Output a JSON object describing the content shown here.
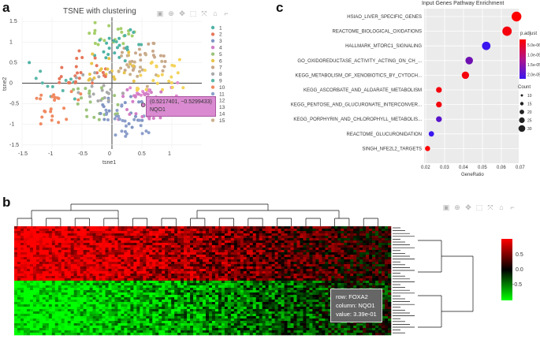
{
  "panels": {
    "a": "a",
    "b": "b",
    "c": "c"
  },
  "toolbar_icons": [
    "camera-icon",
    "zoom-icon",
    "pan-icon",
    "select-box-icon",
    "autoscale-icon",
    "home-icon",
    "spike-icon"
  ],
  "toolbar_glyphs": [
    "▣",
    "⊕",
    "✥",
    "⬚",
    "⤧",
    "⌂",
    "⌐"
  ],
  "tsne": {
    "title": "TSNE with clustering",
    "xlabel": "tsne1",
    "ylabel": "tsne2",
    "xticks": [
      "-1.5",
      "-1",
      "-0.5",
      "0",
      "0.5",
      "1"
    ],
    "yticks": [
      "1.5",
      "1",
      "0.5",
      "0",
      "-0.5",
      "-1",
      "-1.5"
    ],
    "legend": [
      "1",
      "2",
      "3",
      "4",
      "5",
      "6",
      "7",
      "8",
      "9",
      "10",
      "11",
      "12",
      "13",
      "14",
      "15"
    ],
    "colors": [
      "#4fb3a6",
      "#e6775c",
      "#8096c4",
      "#d27ec6",
      "#9cc47a",
      "#e8c44a",
      "#c8a88a",
      "#aaaaaa",
      "#5ab7a8",
      "#f08a62",
      "#8d9fcb",
      "#e28ad0",
      "#a6cf6b",
      "#f3d35a",
      "#c9b08d"
    ],
    "tooltip": {
      "line1": "(0.5217401, −0.5299433)",
      "line2": "NQO1"
    }
  },
  "enrichment": {
    "title": "Input Genes Pathway Enrichment",
    "xlabel": "GeneRatio",
    "xticks": [
      "0.02",
      "0.03",
      "0.04",
      "0.05",
      "0.06",
      "0.07"
    ],
    "pathways": [
      "HSIAO_LIVER_SPECIFIC_GENES",
      "REACTOME_BIOLOGICAL_OXIDATIONS",
      "HALLMARK_MTORC1_SIGNALING",
      "GO_OXIDOREDUCTASE_ACTIVITY_ACTING_ON_CH_...",
      "KEGG_METABOLISM_OF_XENOBIOTICS_BY_CYTOCH...",
      "KEGG_ASCORBATE_AND_ALDARATE_METABOLISM",
      "KEGG_PENTOSE_AND_GLUCURONATE_INTERCONVER...",
      "KEGG_PORPHYRIN_AND_CHLOROPHYLL_METABOLIS...",
      "REACTOME_GLUCURONIDATION",
      "SINGH_NFE2L2_TARGETS"
    ],
    "padj_title": "p.adjust",
    "padj_ticks": [
      "5.0e-06",
      "1.0e-05",
      "1.5e-05",
      "2.0e-05"
    ],
    "count_title": "Count",
    "count_ticks": [
      "10",
      "15",
      "20",
      "25",
      "30"
    ]
  },
  "heatmap": {
    "scale_ticks": [
      "0.5",
      "0.0",
      "-0.5"
    ],
    "tooltip": {
      "row": "row: FOXA2",
      "column": "column: NQO1",
      "value": "value:  3.39e-01"
    }
  },
  "chart_data": [
    {
      "type": "scatter",
      "title": "TSNE with clustering",
      "xlabel": "tsne1",
      "ylabel": "tsne2",
      "xlim": [
        -1.5,
        1.5
      ],
      "ylim": [
        -1.6,
        1.6
      ],
      "clusters": 15,
      "highlight": {
        "label": "NQO1",
        "x": 0.5217401,
        "y": -0.5299433
      }
    },
    {
      "type": "scatter",
      "title": "Input Genes Pathway Enrichment",
      "xlabel": "GeneRatio",
      "xlim": [
        0.02,
        0.07
      ],
      "categories": [
        "HSIAO_LIVER_SPECIFIC_GENES",
        "REACTOME_BIOLOGICAL_OXIDATIONS",
        "HALLMARK_MTORC1_SIGNALING",
        "GO_OXIDOREDUCTASE_ACTIVITY_ACTING_ON_CH_...",
        "KEGG_METABOLISM_OF_XENOBIOTICS_BY_CYTOCH...",
        "KEGG_ASCORBATE_AND_ALDARATE_METABOLISM",
        "KEGG_PENTOSE_AND_GLUCURONATE_INTERCONVER...",
        "KEGG_PORPHYRIN_AND_CHLOROPHYLL_METABOLIS...",
        "REACTOME_GLUCURONIDATION",
        "SINGH_NFE2L2_TARGETS"
      ],
      "gene_ratio": [
        0.068,
        0.063,
        0.052,
        0.043,
        0.041,
        0.027,
        0.027,
        0.027,
        0.023,
        0.021
      ],
      "count": [
        30,
        28,
        24,
        20,
        19,
        12,
        12,
        12,
        10,
        9
      ],
      "p_adjust": [
        3e-06,
        4e-06,
        2.2e-05,
        1.7e-05,
        4e-06,
        4e-06,
        4e-06,
        1.9e-05,
        2.2e-05,
        3e-06
      ]
    },
    {
      "type": "heatmap",
      "scale": [
        -0.8,
        0.8
      ],
      "highlight": {
        "row": "FOXA2",
        "column": "NQO1",
        "value": 0.339
      }
    }
  ]
}
